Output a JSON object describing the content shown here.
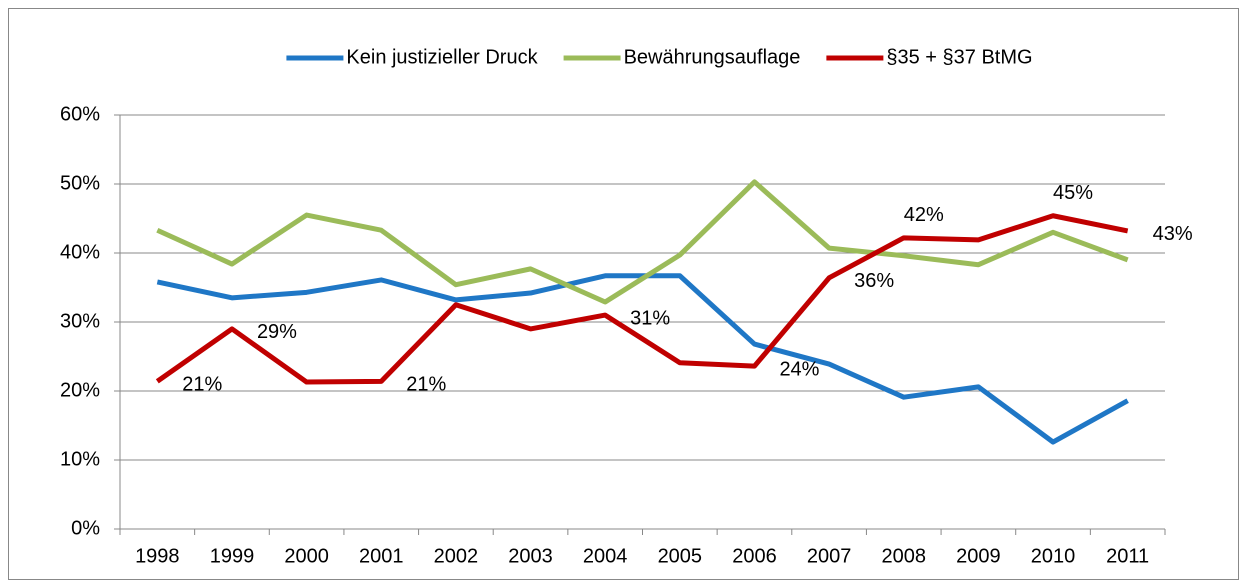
{
  "chart_data": {
    "type": "line",
    "categories": [
      "1998",
      "1999",
      "2000",
      "2001",
      "2002",
      "2003",
      "2004",
      "2005",
      "2006",
      "2007",
      "2008",
      "2009",
      "2010",
      "2011"
    ],
    "series": [
      {
        "name": "Kein justizieller Druck",
        "color": "#1f77c6",
        "values": [
          35.8,
          33.5,
          34.3,
          36.1,
          33.2,
          34.2,
          36.7,
          36.7,
          26.8,
          23.9,
          19.1,
          20.6,
          12.6,
          18.6
        ]
      },
      {
        "name": "Bewährungsauflage",
        "color": "#9bbb59",
        "values": [
          43.3,
          38.4,
          45.5,
          43.3,
          35.4,
          37.7,
          32.9,
          39.7,
          50.3,
          40.7,
          39.6,
          38.3,
          43.0,
          39.0
        ]
      },
      {
        "name": "§35 + §37 BtMG",
        "color": "#c00000",
        "values": [
          21.4,
          29.0,
          21.3,
          21.4,
          32.5,
          29.0,
          31.0,
          24.1,
          23.6,
          36.4,
          42.2,
          41.9,
          45.4,
          43.2
        ],
        "value_labels": [
          "21%",
          "29%",
          null,
          "21%",
          null,
          null,
          "31%",
          null,
          "24%",
          "36%",
          "42%",
          null,
          "45%",
          "43%"
        ]
      }
    ],
    "ylim": [
      0,
      60
    ],
    "yticks": [
      {
        "value": 0,
        "label": "0%"
      },
      {
        "value": 10,
        "label": "10%"
      },
      {
        "value": 20,
        "label": "20%"
      },
      {
        "value": 30,
        "label": "30%"
      },
      {
        "value": 40,
        "label": "40%"
      },
      {
        "value": 50,
        "label": "50%"
      },
      {
        "value": 60,
        "label": "60%"
      }
    ],
    "grid": true,
    "legend": "top"
  }
}
